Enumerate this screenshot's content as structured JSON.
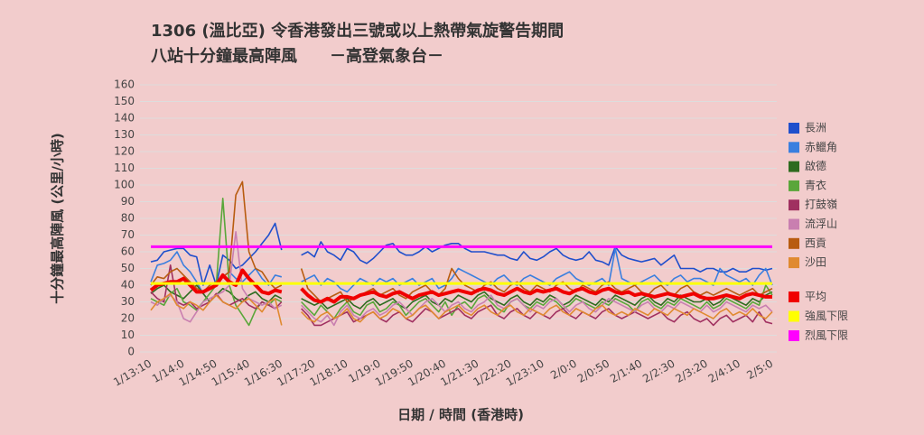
{
  "chart_data": {
    "type": "line",
    "title": "1306 (溫比亞)  令香港發出三號或以上熱帶氣旋警告期間",
    "subtitle": "八站十分鐘最高陣風　　－高登氣象台－",
    "y_label": "十分鐘最高陣風 (公里/小時)",
    "x_label": "日期 / 時間 (香港時)",
    "ylim": [
      0,
      160
    ],
    "yticks": [
      0,
      10,
      20,
      30,
      40,
      50,
      60,
      70,
      80,
      90,
      100,
      110,
      120,
      130,
      140,
      150,
      160
    ],
    "grid": true,
    "legend": "right",
    "categories": [
      "1/13:10",
      null,
      null,
      null,
      null,
      "1/14:0",
      null,
      null,
      null,
      null,
      "1/14:50",
      null,
      null,
      null,
      null,
      "1/15:40",
      null,
      null,
      null,
      null,
      "1/16:30",
      null,
      null,
      null,
      null,
      "1/17:20",
      null,
      null,
      null,
      null,
      "1/18:10",
      null,
      null,
      null,
      null,
      "1/19:0",
      null,
      null,
      null,
      null,
      "1/19:50",
      null,
      null,
      null,
      null,
      "1/20:40",
      null,
      null,
      null,
      null,
      "1/21:30",
      null,
      null,
      null,
      null,
      "1/22:20",
      null,
      null,
      null,
      null,
      "1/23:10",
      null,
      null,
      null,
      null,
      "2/0:0",
      null,
      null,
      null,
      null,
      "2/0:50",
      null,
      null,
      null,
      null,
      "2/1:40",
      null,
      null,
      null,
      null,
      "2/2:30",
      null,
      null,
      null,
      null,
      "2/3:20",
      null,
      null,
      null,
      null,
      "2/4:10",
      null,
      null,
      null,
      null,
      "2/5:0"
    ],
    "series": [
      {
        "name": "長洲",
        "color": "#1f4fcc",
        "values": [
          54,
          55,
          60,
          61,
          62,
          62,
          58,
          57,
          40,
          52,
          40,
          58,
          55,
          50,
          52,
          56,
          60,
          65,
          70,
          77,
          61,
          null,
          null,
          58,
          60,
          57,
          66,
          60,
          58,
          55,
          62,
          60,
          55,
          53,
          56,
          60,
          64,
          65,
          60,
          58,
          58,
          60,
          63,
          60,
          62,
          64,
          65,
          65,
          62,
          60,
          60,
          60,
          59,
          58,
          58,
          56,
          55,
          60,
          56,
          55,
          57,
          60,
          62,
          58,
          56,
          55,
          56,
          60,
          55,
          54,
          52,
          63,
          58,
          56,
          55,
          54,
          55,
          56,
          52,
          55,
          58,
          50,
          50,
          50,
          48,
          50,
          50,
          48,
          48,
          50,
          48,
          48,
          50,
          50,
          49,
          50
        ]
      },
      {
        "name": "赤鱲角",
        "color": "#3a7fdf",
        "values": [
          42,
          52,
          53,
          55,
          60,
          52,
          48,
          42,
          35,
          38,
          40,
          45,
          48,
          44,
          42,
          46,
          50,
          44,
          40,
          46,
          45,
          null,
          null,
          42,
          44,
          46,
          40,
          44,
          42,
          38,
          36,
          40,
          44,
          42,
          40,
          44,
          42,
          44,
          40,
          42,
          44,
          40,
          42,
          44,
          38,
          40,
          44,
          50,
          48,
          46,
          44,
          42,
          40,
          44,
          46,
          42,
          40,
          44,
          46,
          44,
          42,
          40,
          44,
          46,
          48,
          44,
          42,
          40,
          42,
          44,
          40,
          62,
          44,
          42,
          40,
          42,
          44,
          46,
          42,
          40,
          44,
          46,
          42,
          44,
          44,
          42,
          40,
          50,
          46,
          44,
          42,
          44,
          40,
          46,
          50,
          40
        ]
      },
      {
        "name": "啟德",
        "color": "#2e6b1f",
        "values": [
          35,
          38,
          40,
          36,
          34,
          32,
          36,
          40,
          35,
          30,
          34,
          38,
          36,
          32,
          30,
          34,
          36,
          32,
          30,
          34,
          32,
          null,
          null,
          32,
          30,
          28,
          30,
          26,
          28,
          30,
          32,
          28,
          26,
          30,
          32,
          28,
          30,
          32,
          28,
          26,
          30,
          32,
          34,
          30,
          28,
          32,
          30,
          34,
          32,
          30,
          34,
          36,
          32,
          30,
          28,
          32,
          34,
          30,
          28,
          32,
          30,
          34,
          32,
          28,
          30,
          34,
          32,
          30,
          28,
          32,
          30,
          34,
          32,
          30,
          28,
          32,
          34,
          30,
          28,
          32,
          30,
          34,
          32,
          30,
          30,
          32,
          28,
          30,
          34,
          32,
          30,
          28,
          32,
          30,
          34,
          36
        ]
      },
      {
        "name": "青衣",
        "color": "#5aa63a",
        "values": [
          32,
          30,
          28,
          35,
          38,
          30,
          28,
          25,
          30,
          35,
          40,
          92,
          40,
          28,
          22,
          16,
          25,
          30,
          28,
          32,
          30,
          null,
          null,
          30,
          26,
          22,
          28,
          24,
          20,
          26,
          30,
          24,
          22,
          28,
          30,
          24,
          26,
          30,
          28,
          22,
          26,
          30,
          32,
          28,
          24,
          30,
          22,
          28,
          30,
          26,
          32,
          34,
          30,
          26,
          24,
          30,
          32,
          28,
          26,
          30,
          28,
          32,
          30,
          26,
          28,
          32,
          30,
          28,
          26,
          30,
          28,
          32,
          30,
          28,
          24,
          30,
          32,
          28,
          26,
          30,
          28,
          32,
          30,
          28,
          26,
          30,
          26,
          28,
          32,
          30,
          28,
          26,
          30,
          28,
          40,
          34
        ]
      },
      {
        "name": "打鼓嶺",
        "color": "#a03060",
        "values": [
          36,
          32,
          30,
          52,
          30,
          28,
          30,
          26,
          28,
          30,
          35,
          30,
          28,
          30,
          32,
          28,
          26,
          30,
          28,
          26,
          30,
          null,
          null,
          26,
          22,
          16,
          16,
          18,
          20,
          22,
          24,
          18,
          20,
          22,
          24,
          20,
          18,
          22,
          24,
          20,
          18,
          22,
          26,
          24,
          20,
          22,
          24,
          26,
          22,
          20,
          24,
          26,
          28,
          22,
          20,
          24,
          26,
          22,
          20,
          24,
          22,
          20,
          24,
          26,
          22,
          20,
          24,
          22,
          20,
          24,
          26,
          22,
          20,
          22,
          24,
          22,
          20,
          22,
          24,
          20,
          18,
          22,
          24,
          20,
          18,
          20,
          16,
          20,
          22,
          18,
          20,
          22,
          18,
          24,
          18,
          17
        ]
      },
      {
        "name": "流浮山",
        "color": "#c97fb0",
        "values": [
          30,
          28,
          32,
          34,
          30,
          20,
          18,
          24,
          30,
          32,
          34,
          36,
          40,
          72,
          38,
          32,
          30,
          28,
          30,
          26,
          28,
          null,
          null,
          28,
          24,
          20,
          18,
          22,
          16,
          24,
          28,
          22,
          20,
          24,
          26,
          22,
          24,
          28,
          30,
          26,
          22,
          26,
          30,
          32,
          28,
          24,
          28,
          30,
          26,
          24,
          28,
          30,
          34,
          28,
          26,
          30,
          32,
          28,
          24,
          28,
          26,
          30,
          32,
          28,
          24,
          28,
          30,
          26,
          24,
          28,
          32,
          30,
          28,
          26,
          24,
          28,
          30,
          26,
          24,
          28,
          26,
          30,
          28,
          26,
          24,
          28,
          24,
          26,
          30,
          28,
          26,
          24,
          28,
          26,
          28,
          24
        ]
      },
      {
        "name": "西貢",
        "color": "#b85c10",
        "values": [
          40,
          45,
          44,
          48,
          50,
          46,
          42,
          38,
          36,
          40,
          42,
          45,
          48,
          94,
          102,
          60,
          50,
          48,
          42,
          38,
          40,
          null,
          null,
          50,
          38,
          34,
          30,
          32,
          34,
          36,
          30,
          32,
          34,
          36,
          38,
          34,
          36,
          38,
          34,
          32,
          36,
          38,
          40,
          36,
          34,
          38,
          50,
          44,
          40,
          38,
          36,
          40,
          42,
          38,
          36,
          40,
          42,
          38,
          36,
          40,
          38,
          36,
          40,
          42,
          38,
          36,
          40,
          38,
          36,
          40,
          42,
          38,
          36,
          38,
          40,
          36,
          34,
          38,
          40,
          36,
          34,
          38,
          40,
          36,
          34,
          36,
          34,
          36,
          38,
          36,
          34,
          36,
          38,
          34,
          36,
          38
        ]
      },
      {
        "name": "沙田",
        "color": "#e08a30",
        "values": [
          25,
          30,
          32,
          35,
          28,
          26,
          30,
          28,
          25,
          30,
          34,
          30,
          28,
          26,
          30,
          32,
          28,
          24,
          30,
          32,
          16,
          null,
          null,
          24,
          20,
          18,
          22,
          24,
          20,
          22,
          26,
          20,
          18,
          22,
          24,
          20,
          22,
          26,
          24,
          20,
          22,
          26,
          28,
          24,
          20,
          24,
          26,
          28,
          24,
          22,
          26,
          28,
          24,
          22,
          26,
          28,
          24,
          22,
          26,
          24,
          22,
          26,
          28,
          24,
          22,
          26,
          24,
          22,
          26,
          28,
          24,
          22,
          24,
          22,
          26,
          24,
          22,
          26,
          24,
          22,
          26,
          24,
          22,
          26,
          24,
          22,
          20,
          24,
          26,
          22,
          24,
          22,
          26,
          22,
          20,
          24
        ]
      },
      {
        "name": "平均",
        "color": "#f00000",
        "values": [
          37,
          40,
          41,
          42,
          42,
          44,
          40,
          36,
          36,
          38,
          40,
          46,
          42,
          40,
          49,
          44,
          40,
          36,
          35,
          37,
          36,
          null,
          null,
          38,
          34,
          31,
          30,
          32,
          30,
          33,
          33,
          32,
          34,
          35,
          36,
          34,
          33,
          35,
          36,
          34,
          32,
          34,
          35,
          36,
          34,
          35,
          36,
          37,
          36,
          35,
          37,
          38,
          37,
          35,
          34,
          36,
          38,
          36,
          35,
          37,
          36,
          37,
          38,
          36,
          35,
          37,
          38,
          36,
          35,
          37,
          38,
          36,
          35,
          36,
          34,
          35,
          34,
          33,
          34,
          35,
          34,
          33,
          34,
          35,
          33,
          32,
          32,
          33,
          34,
          33,
          32,
          34,
          35,
          34,
          33,
          33
        ]
      },
      {
        "name": "強風下限",
        "color": "#ffff00",
        "values": [
          41,
          41,
          41,
          41,
          41,
          41,
          41,
          41,
          41,
          41,
          41,
          41,
          41,
          41,
          41,
          41,
          41,
          41,
          41,
          41,
          41,
          41,
          41,
          41,
          41,
          41,
          41,
          41,
          41,
          41,
          41,
          41,
          41,
          41,
          41,
          41,
          41,
          41,
          41,
          41,
          41,
          41,
          41,
          41,
          41,
          41,
          41,
          41,
          41,
          41,
          41,
          41,
          41,
          41,
          41,
          41,
          41,
          41,
          41,
          41,
          41,
          41,
          41,
          41,
          41,
          41,
          41,
          41,
          41,
          41,
          41,
          41,
          41,
          41,
          41,
          41,
          41,
          41,
          41,
          41,
          41,
          41,
          41,
          41,
          41,
          41,
          41,
          41,
          41,
          41,
          41,
          41,
          41,
          41,
          41,
          41
        ]
      },
      {
        "name": "烈風下限",
        "color": "#ff00ff",
        "values": [
          63,
          63,
          63,
          63,
          63,
          63,
          63,
          63,
          63,
          63,
          63,
          63,
          63,
          63,
          63,
          63,
          63,
          63,
          63,
          63,
          63,
          63,
          63,
          63,
          63,
          63,
          63,
          63,
          63,
          63,
          63,
          63,
          63,
          63,
          63,
          63,
          63,
          63,
          63,
          63,
          63,
          63,
          63,
          63,
          63,
          63,
          63,
          63,
          63,
          63,
          63,
          63,
          63,
          63,
          63,
          63,
          63,
          63,
          63,
          63,
          63,
          63,
          63,
          63,
          63,
          63,
          63,
          63,
          63,
          63,
          63,
          63,
          63,
          63,
          63,
          63,
          63,
          63,
          63,
          63,
          63,
          63,
          63,
          63,
          63,
          63,
          63,
          63,
          63,
          63,
          63,
          63,
          63,
          63,
          63,
          63
        ]
      }
    ]
  }
}
